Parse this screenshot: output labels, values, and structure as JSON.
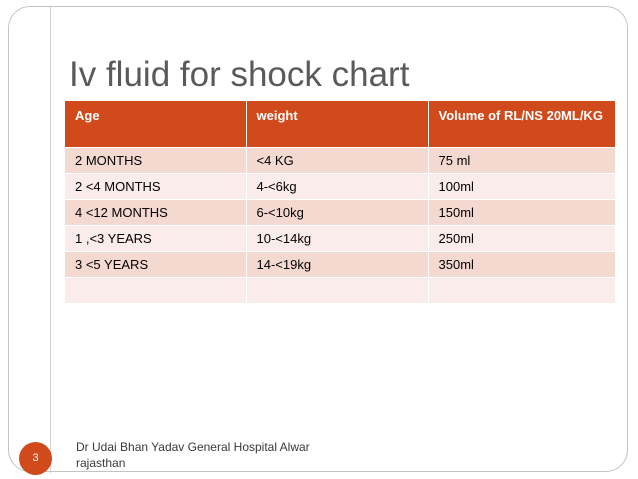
{
  "slide": {
    "title": "Iv fluid for shock chart",
    "number": "3",
    "footer": "Dr Udai Bhan Yadav General Hospital Alwar rajasthan"
  },
  "colors": {
    "accent": "#d04a1c",
    "row_odd": "#f4d9d1",
    "row_even": "#faecea",
    "title_text": "#5a5a5a"
  },
  "table": {
    "headers": [
      "Age",
      "weight",
      "Volume of RL/NS 20ML/KG"
    ],
    "rows": [
      [
        "2 MONTHS",
        "<4 KG",
        "75 ml"
      ],
      [
        "2 <4 MONTHS",
        "4-<6kg",
        "100ml"
      ],
      [
        "4 <12 MONTHS",
        "6-<10kg",
        "150ml"
      ],
      [
        "1 ,<3 YEARS",
        "10-<14kg",
        "250ml"
      ],
      [
        "3 <5 YEARS",
        "14-<19kg",
        "350ml"
      ],
      [
        "",
        "",
        ""
      ]
    ]
  }
}
